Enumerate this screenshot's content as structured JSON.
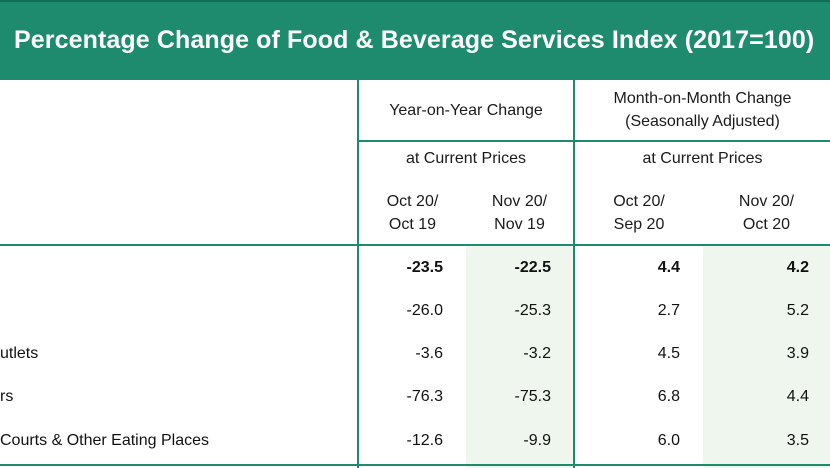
{
  "title": "Percentage Change of Food & Beverage Services Index (2017=100)",
  "headers": {
    "yoy": "Year-on-Year Change",
    "mom_line1": "Month-on-Month Change",
    "mom_line2": "(Seasonally Adjusted)",
    "current_prices_yoy": "at Current Prices",
    "current_prices_mom": "at Current Prices",
    "periods": [
      {
        "line1": "Oct 20/",
        "line2": "Oct 19"
      },
      {
        "line1": "Nov 20/",
        "line2": "Nov 19"
      },
      {
        "line1": "Oct 20/",
        "line2": "Sep 20"
      },
      {
        "line1": "Nov 20/",
        "line2": "Oct 20"
      }
    ]
  },
  "rows": [
    {
      "label": "",
      "values": [
        "-23.5",
        "-22.5",
        "4.4",
        "4.2"
      ],
      "bold": true
    },
    {
      "label": "",
      "values": [
        "-26.0",
        "-25.3",
        "2.7",
        "5.2"
      ],
      "bold": false
    },
    {
      "label": "utlets",
      "values": [
        "-3.6",
        "-3.2",
        "4.5",
        "3.9"
      ],
      "bold": false
    },
    {
      "label": "rs",
      "values": [
        "-76.3",
        "-75.3",
        "6.8",
        "4.4"
      ],
      "bold": false
    },
    {
      "label": "Courts & Other Eating Places",
      "values": [
        "-12.6",
        "-9.9",
        "6.0",
        "3.5"
      ],
      "bold": false
    }
  ],
  "colors": {
    "accent": "#1e8a6e",
    "shade": "#eef6ee"
  }
}
